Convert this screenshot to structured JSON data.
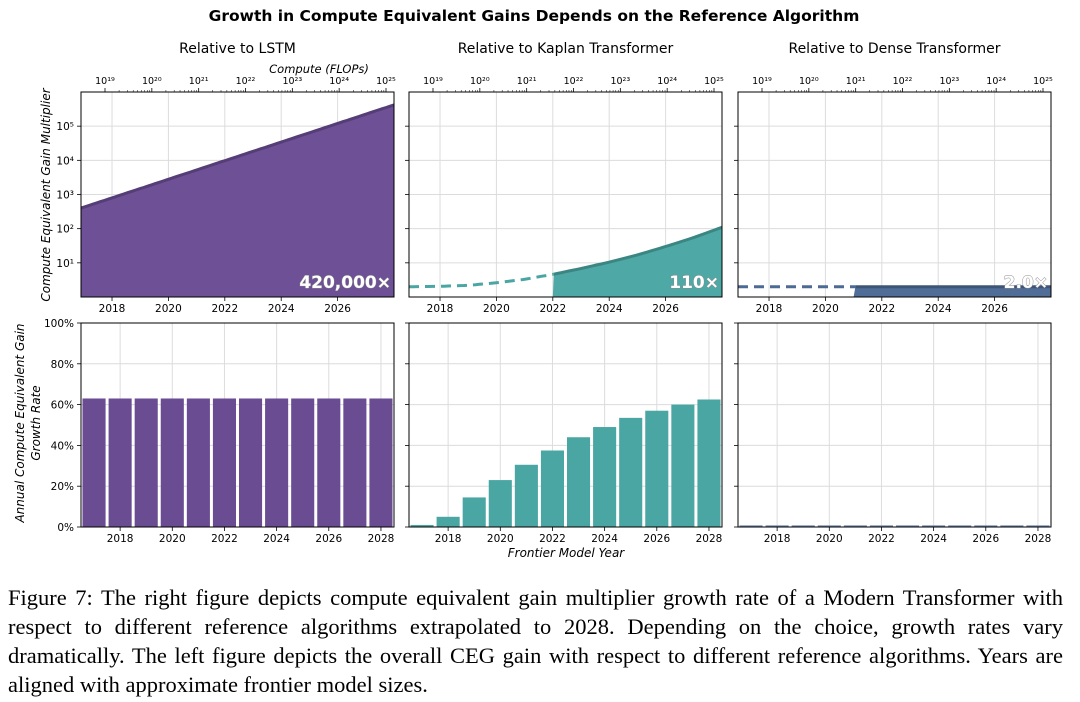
{
  "figure": {
    "suptitle": "Growth in Compute Equivalent Gains Depends on the Reference Algorithm",
    "top_ylabel": "Compute Equivalent Gain Multiplier",
    "bottom_ylabel_line1": "Annual Compute Equivalent Gain",
    "bottom_ylabel_line2": "Growth Rate",
    "top_secondary_xlabel": "Compute (FLOPs)",
    "bottom_xlabel": "Frontier Model Year",
    "caption": "Figure 7: The right figure depicts compute equivalent gain multiplier growth rate of a Modern Transformer with respect to different reference algorithms extrapolated to 2028. Depending on the choice, growth rates vary dramatically. The left figure depicts the overall CEG gain with respect to different reference algorithms. Years are aligned with approximate frontier model sizes."
  },
  "chart_data": [
    {
      "type": "area",
      "panel": "top-left",
      "title": "Relative to LSTM",
      "xlabel": "",
      "ylabel": "Compute Equivalent Gain Multiplier",
      "yscale": "log",
      "xlim": [
        2016.9,
        2028.0
      ],
      "ylim": [
        1,
        1000000
      ],
      "color": "#6a4c93",
      "x": [
        2016.9,
        2028.0
      ],
      "y": [
        400,
        420000
      ],
      "solid_from": 2016.9,
      "annotation": "420,000×",
      "x_ticks": [
        "2018",
        "2020",
        "2022",
        "2024",
        "2026"
      ],
      "y_ticks": [
        "10¹",
        "10²",
        "10³",
        "10⁴",
        "10⁵"
      ],
      "top_axis_ticks": [
        "10¹⁹",
        "10²⁰",
        "10²¹",
        "10²²",
        "10²³",
        "10²⁴",
        "10²⁵"
      ],
      "grid": true
    },
    {
      "type": "area",
      "panel": "top-middle",
      "title": "Relative to Kaplan Transformer",
      "xlabel": "",
      "yscale": "log",
      "xlim": [
        2016.9,
        2028.0
      ],
      "ylim": [
        1,
        1000000
      ],
      "color": "#4aa6a3",
      "x": [
        2016.9,
        2018,
        2019,
        2020,
        2021,
        2022,
        2023,
        2024,
        2025,
        2026,
        2027,
        2028.0
      ],
      "y": [
        2.0,
        2.05,
        2.2,
        2.6,
        3.3,
        4.6,
        6.8,
        10.5,
        17,
        30,
        55,
        110
      ],
      "solid_from": 2022,
      "annotation": "110×",
      "x_ticks": [
        "2018",
        "2020",
        "2022",
        "2024",
        "2026"
      ],
      "top_axis_ticks": [
        "10¹⁹",
        "10²⁰",
        "10²¹",
        "10²²",
        "10²³",
        "10²⁴",
        "10²⁵"
      ],
      "grid": true
    },
    {
      "type": "area",
      "panel": "top-right",
      "title": "Relative to Dense Transformer",
      "xlabel": "",
      "yscale": "log",
      "xlim": [
        2016.9,
        2028.0
      ],
      "ylim": [
        1,
        1000000
      ],
      "color": "#4d6a96",
      "x": [
        2016.9,
        2028.0
      ],
      "y": [
        2.0,
        2.0
      ],
      "solid_from": 2021,
      "annotation": "2.0×",
      "x_ticks": [
        "2018",
        "2020",
        "2022",
        "2024",
        "2026"
      ],
      "top_axis_ticks": [
        "10¹⁹",
        "10²⁰",
        "10²¹",
        "10²²",
        "10²³",
        "10²⁴",
        "10²⁵"
      ],
      "grid": true
    },
    {
      "type": "bar",
      "panel": "bottom-left",
      "xlabel": "",
      "ylabel": "Annual Compute Equivalent Gain Growth Rate",
      "ylim": [
        0,
        100
      ],
      "color": "#6a4c93",
      "categories": [
        2017,
        2018,
        2019,
        2020,
        2021,
        2022,
        2023,
        2024,
        2025,
        2026,
        2027,
        2028
      ],
      "values": [
        63,
        63,
        63,
        63,
        63,
        63,
        63,
        63,
        63,
        63,
        63,
        63
      ],
      "x_ticks": [
        "2018",
        "2020",
        "2022",
        "2024",
        "2026",
        "2028"
      ],
      "y_ticks": [
        "0%",
        "20%",
        "40%",
        "60%",
        "80%",
        "100%"
      ],
      "grid": true
    },
    {
      "type": "bar",
      "panel": "bottom-middle",
      "xlabel": "Frontier Model Year",
      "ylim": [
        0,
        100
      ],
      "color": "#4aa6a3",
      "categories": [
        2017,
        2018,
        2019,
        2020,
        2021,
        2022,
        2023,
        2024,
        2025,
        2026,
        2027,
        2028
      ],
      "values": [
        1,
        5,
        14.5,
        23,
        30.5,
        37.5,
        44,
        49,
        53.5,
        57,
        60,
        62.5
      ],
      "x_ticks": [
        "2018",
        "2020",
        "2022",
        "2024",
        "2026",
        "2028"
      ],
      "grid": true
    },
    {
      "type": "bar",
      "panel": "bottom-right",
      "xlabel": "",
      "ylim": [
        0,
        100
      ],
      "color": "#6b85b0",
      "categories": [
        2017,
        2018,
        2019,
        2020,
        2021,
        2022,
        2023,
        2024,
        2025,
        2026,
        2027,
        2028
      ],
      "values": [
        0.4,
        0.4,
        0.4,
        0.4,
        0.4,
        0.4,
        0.4,
        0.4,
        0.4,
        0.4,
        0.4,
        0.4
      ],
      "x_ticks": [
        "2018",
        "2020",
        "2022",
        "2024",
        "2026",
        "2028"
      ],
      "grid": true
    }
  ]
}
